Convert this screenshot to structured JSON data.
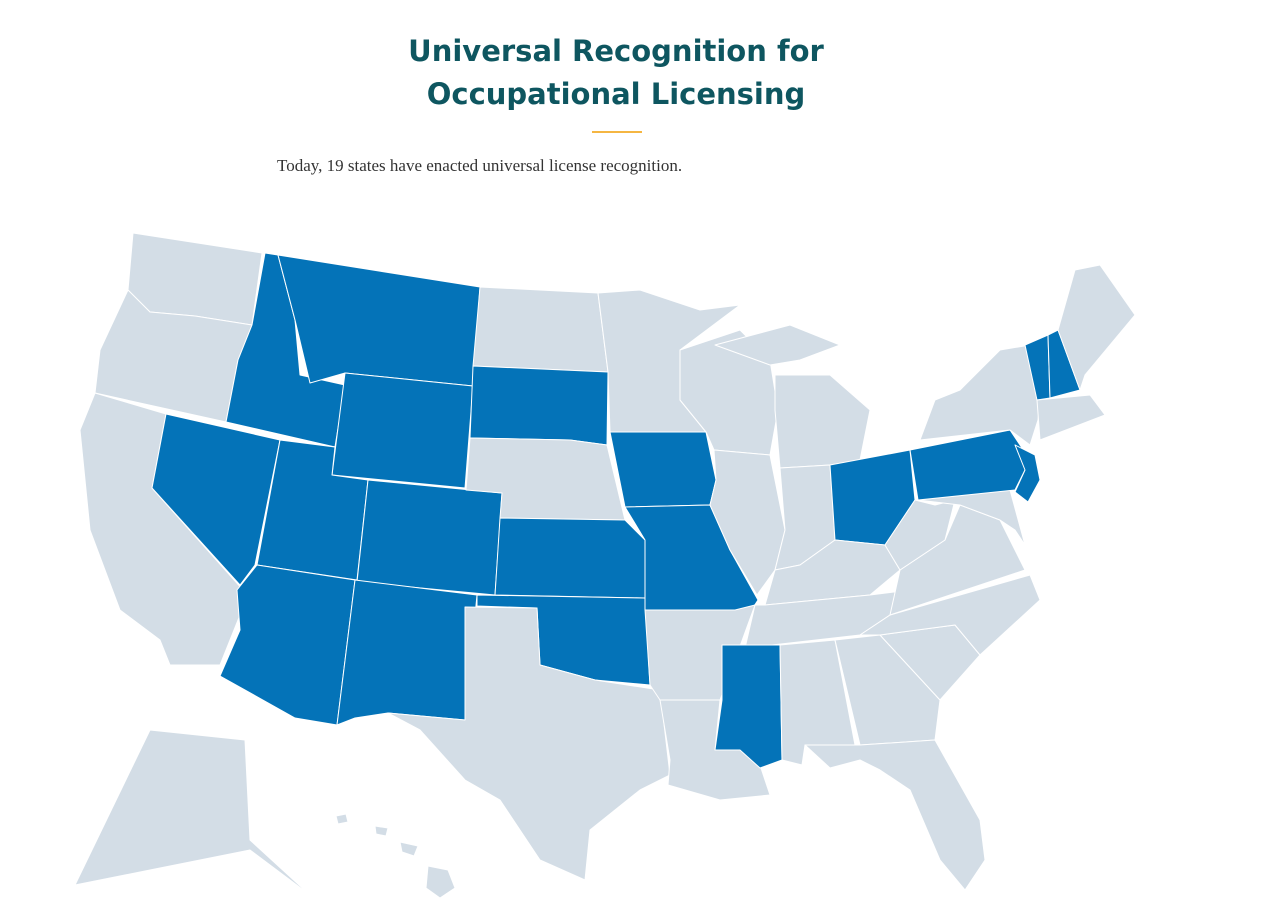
{
  "header": {
    "title": "Universal Recognition for Occupational Licensing",
    "subtitle": "Today, 19 states have enacted universal license recognition."
  },
  "map": {
    "highlight_color": "#0473b8",
    "base_color": "#d3dde6",
    "border_color": "#ffffff"
  }
}
